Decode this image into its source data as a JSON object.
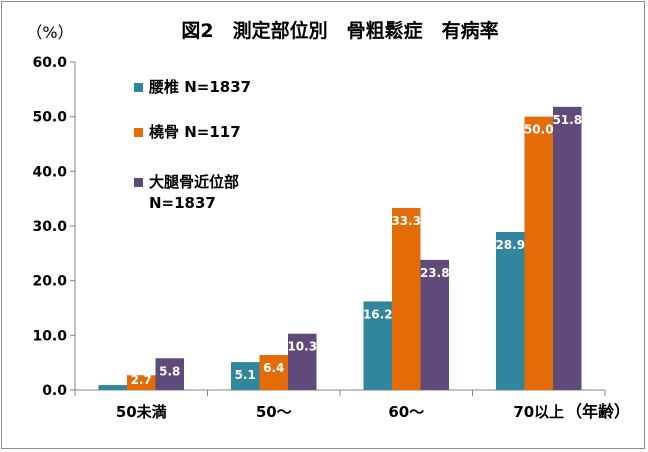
{
  "chart_data": {
    "type": "bar",
    "title": "図2　測定部位別　骨粗鬆症　有病率",
    "ylabel": "（%）",
    "xlabel": "（年齢）",
    "categories": [
      "50未満",
      "50〜",
      "60〜",
      "70以上"
    ],
    "ylim": [
      0,
      60
    ],
    "yticks": [
      "0.0",
      "10.0",
      "20.0",
      "30.0",
      "40.0",
      "50.0",
      "60.0"
    ],
    "grid": false,
    "legend_position": "top-left",
    "series": [
      {
        "name": "腰椎 N=1837",
        "color": "#31859c",
        "values": [
          0.9,
          5.1,
          16.2,
          28.9
        ],
        "labels": [
          "",
          "5.1",
          "16.2",
          "28.9"
        ]
      },
      {
        "name": "橈骨 N=117",
        "color": "#e36c09",
        "values": [
          2.7,
          6.4,
          33.3,
          50.0
        ],
        "labels": [
          "2.7",
          "6.4",
          "33.3",
          "50.0"
        ]
      },
      {
        "name": "大腿骨近位部 N=1837",
        "legend_lines": [
          "大腿骨近位部",
          "N=1837"
        ],
        "color": "#604a7b",
        "values": [
          5.8,
          10.3,
          23.8,
          51.8
        ],
        "labels": [
          "5.8",
          "10.3",
          "23.8",
          "51.8"
        ]
      }
    ]
  }
}
